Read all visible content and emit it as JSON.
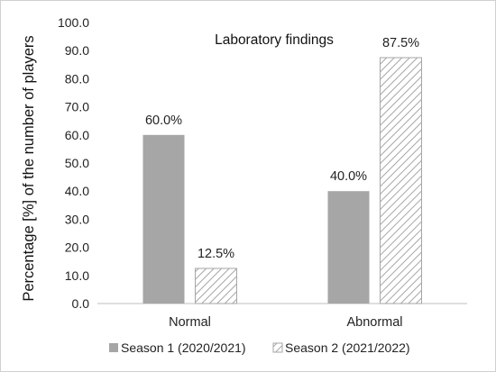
{
  "chart_data": {
    "type": "bar",
    "title": "Laboratory findings",
    "ylabel": "Percentage [%] of the number of players",
    "xlabel": "",
    "categories": [
      "Normal",
      "Abnormal"
    ],
    "ylim": [
      0,
      100
    ],
    "yticks": [
      "0.0",
      "10.0",
      "20.0",
      "30.0",
      "40.0",
      "50.0",
      "60.0",
      "70.0",
      "80.0",
      "90.0",
      "100.0"
    ],
    "grid": false,
    "legend_position": "bottom",
    "series": [
      {
        "name": "Season 1 (2020/2021)",
        "values": [
          60.0,
          40.0
        ],
        "labels": [
          "60.0%",
          "40.0%"
        ],
        "color": "#a6a6a6",
        "pattern": "solid"
      },
      {
        "name": "Season 2 (2021/2022)",
        "values": [
          12.5,
          87.5
        ],
        "labels": [
          "12.5%",
          "87.5%"
        ],
        "color": "#a6a6a6",
        "pattern": "hatched"
      }
    ]
  }
}
